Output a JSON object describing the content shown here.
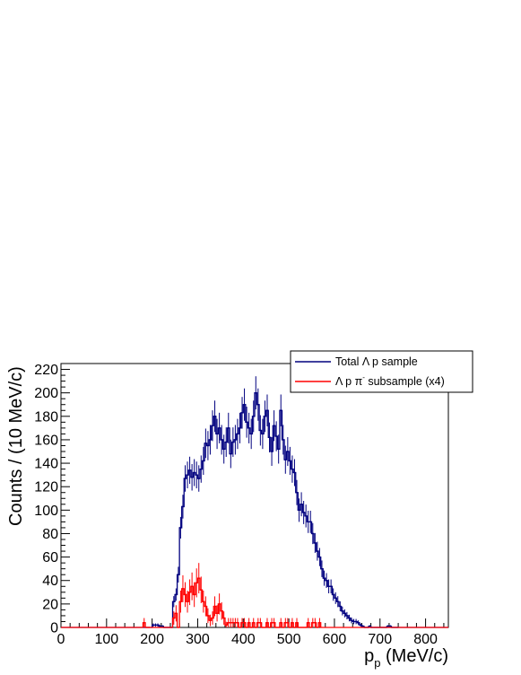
{
  "chart_data": {
    "type": "line",
    "style": "histogram-step",
    "xlabel": "p",
    "xlabel_subscript": "p",
    "xlabel_unit": " (MeV/c)",
    "ylabel": "Counts / (10 MeV/c)",
    "xlim": [
      0,
      850
    ],
    "ylim": [
      0,
      225
    ],
    "x_ticks": [
      0,
      100,
      200,
      300,
      400,
      500,
      600,
      700,
      800
    ],
    "y_ticks": [
      0,
      20,
      40,
      60,
      80,
      100,
      120,
      140,
      160,
      180,
      200,
      220
    ],
    "bin_width": 5,
    "legend": {
      "placement": "top-right",
      "entries": [
        {
          "text_before": "Total ",
          "symbol": "Λ",
          "text_after": " p sample",
          "color": "#00007f"
        },
        {
          "text_before": "",
          "symbol": "Λ",
          "text_after": " p π",
          "superscript": "-",
          "text_tail": " subsample (x4)",
          "color": "#ff0000"
        }
      ]
    },
    "series": [
      {
        "name": "Total Λ p sample",
        "color": "#00007f",
        "error_bars": true,
        "x": [
          200,
          205,
          210,
          215,
          220,
          225,
          230,
          235,
          240,
          245,
          250,
          255,
          260,
          265,
          270,
          275,
          280,
          285,
          290,
          295,
          300,
          305,
          310,
          315,
          320,
          325,
          330,
          335,
          340,
          345,
          350,
          355,
          360,
          365,
          370,
          375,
          380,
          385,
          390,
          395,
          400,
          405,
          410,
          415,
          420,
          425,
          430,
          435,
          440,
          445,
          450,
          455,
          460,
          465,
          470,
          475,
          480,
          485,
          490,
          495,
          500,
          505,
          510,
          515,
          520,
          525,
          530,
          535,
          540,
          545,
          550,
          555,
          560,
          565,
          570,
          575,
          580,
          585,
          590,
          595,
          600,
          605,
          610,
          615,
          620,
          625,
          630,
          635,
          640,
          645,
          650,
          655,
          660,
          665,
          670,
          675,
          680,
          685,
          690,
          695,
          700,
          705,
          710,
          715,
          720,
          725,
          730,
          735
        ],
        "y": [
          2,
          2,
          2,
          1,
          1,
          0,
          0,
          0,
          0,
          22,
          28,
          45,
          85,
          103,
          127,
          130,
          134,
          128,
          132,
          130,
          127,
          135,
          142,
          157,
          155,
          160,
          172,
          180,
          165,
          170,
          160,
          152,
          158,
          170,
          148,
          158,
          160,
          165,
          170,
          183,
          190,
          175,
          170,
          165,
          180,
          200,
          190,
          168,
          165,
          180,
          185,
          162,
          150,
          172,
          163,
          152,
          185,
          160,
          143,
          150,
          142,
          135,
          132,
          115,
          100,
          105,
          98,
          95,
          90,
          90,
          80,
          72,
          65,
          60,
          50,
          42,
          40,
          35,
          35,
          28,
          25,
          22,
          18,
          14,
          12,
          10,
          8,
          6,
          5,
          5,
          4,
          2,
          1,
          0,
          0,
          1,
          0,
          0,
          0,
          0,
          0,
          0,
          0,
          1,
          1,
          0,
          0,
          0
        ]
      },
      {
        "name": "Λ p π- subsample (x4)",
        "color": "#ff0000",
        "error_bars": true,
        "x": [
          180,
          185,
          190,
          245,
          250,
          255,
          260,
          265,
          270,
          275,
          280,
          285,
          290,
          295,
          300,
          305,
          310,
          315,
          320,
          325,
          330,
          335,
          340,
          345,
          350,
          355,
          360,
          365,
          370,
          375,
          380,
          385,
          390,
          395,
          400,
          405,
          410,
          415,
          420,
          425,
          430,
          435,
          440,
          445,
          450,
          455,
          460,
          465,
          470,
          475,
          480,
          485,
          490,
          495,
          500,
          505,
          510,
          515,
          520,
          525,
          530,
          535,
          540,
          545,
          550,
          555,
          560,
          565
        ],
        "y": [
          4,
          0,
          0,
          8,
          12,
          0,
          22,
          33,
          28,
          22,
          30,
          35,
          28,
          38,
          42,
          32,
          22,
          18,
          10,
          6,
          8,
          18,
          12,
          20,
          14,
          8,
          2,
          4,
          4,
          4,
          4,
          4,
          0,
          4,
          4,
          0,
          4,
          0,
          4,
          0,
          4,
          4,
          0,
          0,
          4,
          0,
          4,
          4,
          0,
          0,
          4,
          0,
          4,
          4,
          0,
          4,
          0,
          4,
          0,
          0,
          0,
          0,
          4,
          0,
          4,
          4,
          0,
          4
        ]
      }
    ]
  }
}
